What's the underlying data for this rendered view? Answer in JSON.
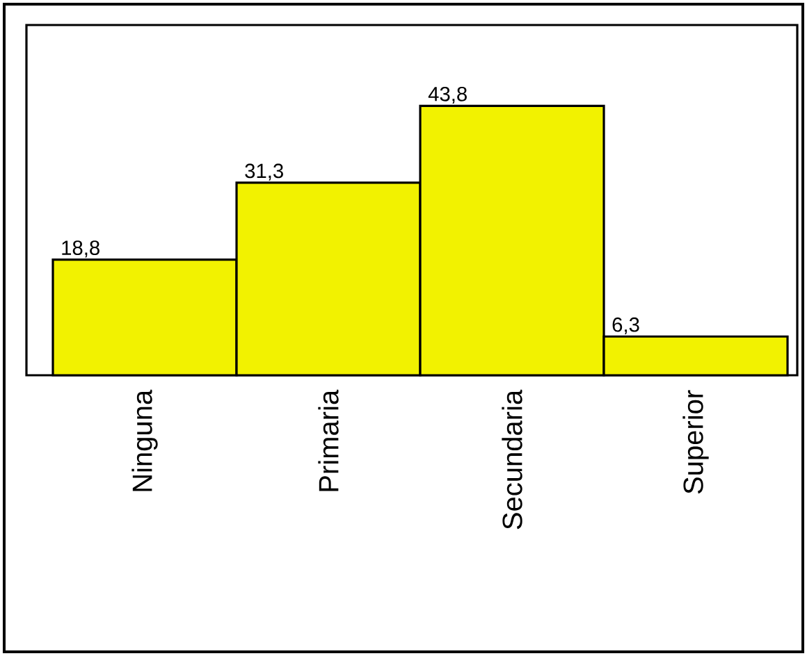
{
  "chart_data": {
    "type": "bar",
    "categories": [
      "Ninguna",
      "Primaria",
      "Secundaria",
      "Superior"
    ],
    "values": [
      18.8,
      31.3,
      43.8,
      6.3
    ],
    "value_labels": [
      "18,8",
      "31,3",
      "43,8",
      "6,3"
    ],
    "color": "#f2f200"
  }
}
